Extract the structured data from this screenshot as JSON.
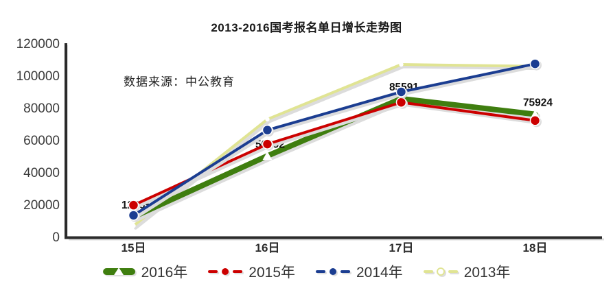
{
  "page": {
    "background": "#ffffff"
  },
  "chart_data": {
    "type": "line",
    "title": "2013-2016国考报名单日增长走势图",
    "source_note": "数据来源：中公教育",
    "categories": [
      "15日",
      "16日",
      "17日",
      "18日"
    ],
    "series": [
      {
        "name": "2016年",
        "color": "#3f7e0f",
        "marker": "white-triangle",
        "line_width": 8,
        "values": [
          12265,
          50092,
          85591,
          75924
        ]
      },
      {
        "name": "2015年",
        "color": "#cc0000",
        "marker": "dot",
        "line_width": 4,
        "values": [
          19500,
          57400,
          83300,
          72000
        ]
      },
      {
        "name": "2014年",
        "color": "#1b3d91",
        "marker": "dot",
        "line_width": 4,
        "values": [
          13200,
          66100,
          89800,
          107200
        ]
      },
      {
        "name": "2013年",
        "color": "#e0e493",
        "marker": "white-dot",
        "line_width": 4,
        "values": [
          6700,
          72800,
          106800,
          105700
        ]
      }
    ],
    "data_labels": {
      "series": "2016年",
      "values": [
        "12265",
        "50092",
        "85591",
        "75924"
      ]
    },
    "xlabel": "",
    "ylabel": "",
    "ylim": [
      0,
      120000
    ],
    "ytick_labels": [
      "0",
      "20000",
      "40000",
      "60000",
      "80000",
      "100000",
      "120000"
    ],
    "grid": false,
    "legend_position": "bottom",
    "axis_color": "#2b2b2b",
    "shadow_color": "#dcdcdc",
    "tick_label_color": "#3a3a3a",
    "data_label_color": "#111111"
  }
}
